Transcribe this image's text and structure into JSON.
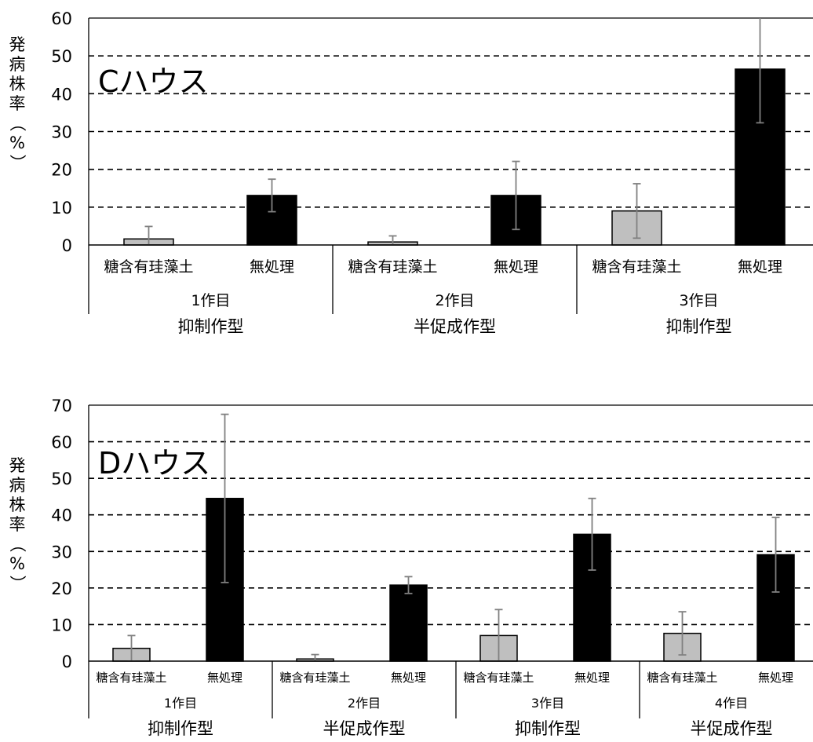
{
  "chart_data": [
    {
      "type": "bar",
      "title": "Cハウス",
      "ylabel": "発病株率（%）",
      "ylim": [
        0,
        60
      ],
      "yticks": [
        0,
        10,
        20,
        30,
        40,
        50,
        60
      ],
      "grid": true,
      "groups": [
        {
          "crop": "1作目",
          "type": "抑制作型",
          "bars": [
            {
              "label": "糖含有珪藻土",
              "value": 1.6,
              "err": 3.3,
              "color": "#bfbfbf"
            },
            {
              "label": "無処理",
              "value": 13.1,
              "err": 4.3,
              "color": "#000000"
            }
          ]
        },
        {
          "crop": "2作目",
          "type": "半促成作型",
          "bars": [
            {
              "label": "糖含有珪藻土",
              "value": 0.8,
              "err": 1.6,
              "color": "#bfbfbf"
            },
            {
              "label": "無処理",
              "value": 13.1,
              "err": 9.0,
              "color": "#000000"
            }
          ]
        },
        {
          "crop": "3作目",
          "type": "抑制作型",
          "bars": [
            {
              "label": "糖含有珪藻土",
              "value": 9.0,
              "err": 7.2,
              "color": "#bfbfbf"
            },
            {
              "label": "無処理",
              "value": 46.5,
              "err": 14.2,
              "color": "#000000"
            }
          ]
        }
      ]
    },
    {
      "type": "bar",
      "title": "Dハウス",
      "ylabel": "発病株率（%）",
      "ylim": [
        0,
        70
      ],
      "yticks": [
        0,
        10,
        20,
        30,
        40,
        50,
        60,
        70
      ],
      "grid": true,
      "groups": [
        {
          "crop": "1作目",
          "type": "抑制作型",
          "bars": [
            {
              "label": "糖含有珪藻土",
              "value": 3.5,
              "err": 3.5,
              "color": "#bfbfbf"
            },
            {
              "label": "無処理",
              "value": 44.5,
              "err": 23.0,
              "color": "#000000"
            }
          ]
        },
        {
          "crop": "2作目",
          "type": "半促成作型",
          "bars": [
            {
              "label": "糖含有珪藻土",
              "value": 0.6,
              "err": 1.2,
              "color": "#bfbfbf"
            },
            {
              "label": "無処理",
              "value": 20.8,
              "err": 2.3,
              "color": "#000000"
            }
          ]
        },
        {
          "crop": "3作目",
          "type": "抑制作型",
          "bars": [
            {
              "label": "糖含有珪藻土",
              "value": 7.0,
              "err": 7.1,
              "color": "#bfbfbf"
            },
            {
              "label": "無処理",
              "value": 34.7,
              "err": 9.8,
              "color": "#000000"
            }
          ]
        },
        {
          "crop": "4作目",
          "type": "半促成作型",
          "bars": [
            {
              "label": "糖含有珪藻土",
              "value": 7.6,
              "err": 5.9,
              "color": "#bfbfbf"
            },
            {
              "label": "無処理",
              "value": 29.1,
              "err": 10.2,
              "color": "#000000"
            }
          ]
        }
      ]
    }
  ]
}
